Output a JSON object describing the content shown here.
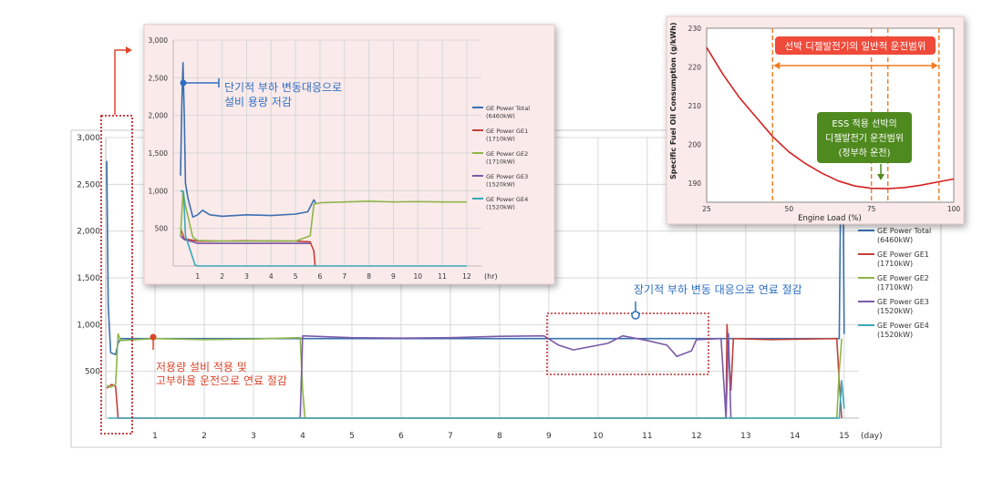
{
  "chart_data": [
    {
      "type": "line",
      "title": "",
      "xlabel": "",
      "ylabel": "",
      "x_unit": "(day)",
      "xticks": [
        1,
        2,
        3,
        4,
        5,
        6,
        7,
        8,
        9,
        10,
        11,
        12,
        13,
        14,
        15
      ],
      "xticklabels": [
        "1",
        "2",
        "3",
        "4",
        "5",
        "6",
        "7",
        "8",
        "9",
        "10",
        "11",
        "12",
        "13",
        "14",
        "15"
      ],
      "xlim": [
        0,
        15.3
      ],
      "yticks": [
        500,
        1000,
        1500,
        2000,
        2500,
        3000
      ],
      "yticklabels": [
        "500",
        "1,000",
        "1,500",
        "2,000",
        "2,500",
        "3,000"
      ],
      "ylim": [
        0,
        3000
      ],
      "grid": true,
      "legend": "right",
      "series": [
        {
          "name": "GE Power Total (6460kW)",
          "legend_lines": [
            "GE Power Total",
            "(6460kW)"
          ],
          "color": "#3a6fb0",
          "points": [
            [
              0.02,
              2750
            ],
            [
              0.05,
              1200
            ],
            [
              0.1,
              700
            ],
            [
              0.2,
              680
            ],
            [
              0.25,
              800
            ],
            [
              0.3,
              850
            ],
            [
              14.9,
              850
            ],
            [
              14.93,
              2500
            ],
            [
              14.97,
              3000
            ],
            [
              15.0,
              900
            ]
          ]
        },
        {
          "name": "GE Power GE1 (1710kW)",
          "legend_lines": [
            "GE Power GE1",
            "(1710kW)"
          ],
          "color": "#c0403a",
          "points": [
            [
              0.02,
              320
            ],
            [
              0.12,
              360
            ],
            [
              0.2,
              340
            ],
            [
              0.25,
              0
            ],
            [
              12.6,
              0
            ],
            [
              12.62,
              1000
            ],
            [
              12.7,
              300
            ],
            [
              12.75,
              850
            ],
            [
              13.5,
              840
            ],
            [
              14.85,
              850
            ],
            [
              14.9,
              400
            ],
            [
              14.95,
              0
            ]
          ]
        },
        {
          "name": "GE Power GE2 (1710kW)",
          "legend_lines": [
            "GE Power GE2",
            "(1710kW)"
          ],
          "color": "#8db64a",
          "points": [
            [
              0.02,
              350
            ],
            [
              0.1,
              330
            ],
            [
              0.2,
              360
            ],
            [
              0.25,
              900
            ],
            [
              0.3,
              830
            ],
            [
              1,
              850
            ],
            [
              2,
              840
            ],
            [
              3,
              845
            ],
            [
              3.95,
              860
            ],
            [
              4.0,
              300
            ],
            [
              4.05,
              0
            ],
            [
              14.85,
              0
            ],
            [
              14.9,
              500
            ],
            [
              14.95,
              850
            ]
          ]
        },
        {
          "name": "GE Power GE3 (1520kW)",
          "legend_lines": [
            "GE Power GE3",
            "(1520kW)"
          ],
          "color": "#7a5aa8",
          "points": [
            [
              3.95,
              0
            ],
            [
              4.0,
              880
            ],
            [
              5,
              860
            ],
            [
              6,
              855
            ],
            [
              7,
              860
            ],
            [
              8,
              875
            ],
            [
              8.9,
              880
            ],
            [
              9.2,
              780
            ],
            [
              9.5,
              730
            ],
            [
              10.2,
              800
            ],
            [
              10.5,
              880
            ],
            [
              11,
              830
            ],
            [
              11.4,
              780
            ],
            [
              11.6,
              660
            ],
            [
              11.9,
              720
            ],
            [
              12.0,
              840
            ],
            [
              12.5,
              850
            ],
            [
              12.6,
              0
            ],
            [
              12.65,
              900
            ],
            [
              12.7,
              0
            ]
          ]
        },
        {
          "name": "GE Power GE4 (1520kW)",
          "legend_lines": [
            "GE Power GE4",
            "(1520kW)"
          ],
          "color": "#3aa8b8",
          "points": [
            [
              0.05,
              0
            ],
            [
              14.9,
              0
            ],
            [
              14.95,
              400
            ],
            [
              15.0,
              100
            ]
          ]
        }
      ],
      "annotations": [
        {
          "text": "저용량 설비 적용 및",
          "color": "#d9472b"
        },
        {
          "text": "고부하율 운전으로 연료 절감",
          "color": "#d9472b"
        },
        {
          "text": "장기적 부하 변동 대응으로 연료 절감",
          "color": "#2e6fc4"
        }
      ]
    },
    {
      "type": "line",
      "title": "",
      "xlabel": "",
      "ylabel": "",
      "x_unit": "(hr)",
      "xticks": [
        1,
        2,
        3,
        4,
        5,
        6,
        7,
        8,
        9,
        10,
        11,
        12
      ],
      "xticklabels": [
        "1",
        "2",
        "3",
        "4",
        "5",
        "6",
        "7",
        "8",
        "9",
        "10",
        "11",
        "12"
      ],
      "xlim": [
        0,
        12.6
      ],
      "yticks": [
        500,
        1000,
        1500,
        2000,
        2500,
        3000
      ],
      "yticklabels": [
        "500",
        "1,000",
        "1,500",
        "2,000",
        "2,500",
        "3,000"
      ],
      "ylim": [
        0,
        3000
      ],
      "grid": true,
      "legend": "right",
      "series": [
        {
          "name": "GE Power Total (6460kW)",
          "legend_lines": [
            "GE Power Total",
            "(6460kW)"
          ],
          "color": "#3a6fb0",
          "points": [
            [
              0.3,
              1200
            ],
            [
              0.35,
              2150
            ],
            [
              0.4,
              2700
            ],
            [
              0.45,
              2000
            ],
            [
              0.5,
              1100
            ],
            [
              0.6,
              900
            ],
            [
              0.8,
              650
            ],
            [
              1.0,
              680
            ],
            [
              1.2,
              740
            ],
            [
              1.5,
              680
            ],
            [
              2,
              660
            ],
            [
              3,
              680
            ],
            [
              4,
              670
            ],
            [
              5,
              690
            ],
            [
              5.5,
              720
            ],
            [
              5.75,
              880
            ],
            [
              5.85,
              820
            ]
          ]
        },
        {
          "name": "GE Power GE1 (1710kW)",
          "legend_lines": [
            "GE Power GE1",
            "(1710kW)"
          ],
          "color": "#c0403a",
          "points": [
            [
              0.3,
              500
            ],
            [
              0.45,
              360
            ],
            [
              1,
              330
            ],
            [
              2,
              330
            ],
            [
              3,
              335
            ],
            [
              4,
              330
            ],
            [
              5,
              330
            ],
            [
              5.6,
              320
            ],
            [
              5.75,
              200
            ],
            [
              5.8,
              0
            ]
          ]
        },
        {
          "name": "GE Power GE2 (1710kW)",
          "legend_lines": [
            "GE Power GE2",
            "(1710kW)"
          ],
          "color": "#8db64a",
          "points": [
            [
              0.3,
              400
            ],
            [
              0.4,
              1000
            ],
            [
              0.5,
              800
            ],
            [
              0.8,
              380
            ],
            [
              1,
              340
            ],
            [
              2,
              330
            ],
            [
              3,
              330
            ],
            [
              4,
              335
            ],
            [
              5,
              330
            ],
            [
              5.6,
              400
            ],
            [
              5.75,
              820
            ],
            [
              6,
              840
            ],
            [
              7,
              850
            ],
            [
              8,
              860
            ],
            [
              9,
              850
            ],
            [
              10,
              855
            ],
            [
              11,
              850
            ],
            [
              12,
              850
            ]
          ]
        },
        {
          "name": "GE Power GE3 (1520kW)",
          "legend_lines": [
            "GE Power GE3",
            "(1520kW)"
          ],
          "color": "#7a5aa8",
          "points": [
            [
              0.3,
              400
            ],
            [
              0.45,
              350
            ],
            [
              0.8,
              320
            ],
            [
              1,
              300
            ],
            [
              2,
              300
            ],
            [
              3,
              300
            ],
            [
              4,
              300
            ],
            [
              5,
              300
            ],
            [
              5.6,
              300
            ]
          ]
        },
        {
          "name": "GE Power GE4 (1520kW)",
          "legend_lines": [
            "GE Power GE4",
            "(1520kW)"
          ],
          "color": "#3aa8b8",
          "points": [
            [
              0.3,
              1000
            ],
            [
              0.42,
              980
            ],
            [
              0.5,
              400
            ],
            [
              0.9,
              10
            ],
            [
              1,
              0
            ],
            [
              12,
              0
            ]
          ]
        }
      ],
      "annotations": [
        {
          "text": "단기적 부하 변동대응으로",
          "color": "#2e6fc4"
        },
        {
          "text": "설비 용량 저감",
          "color": "#2e6fc4"
        }
      ]
    },
    {
      "type": "line",
      "title": "",
      "xlabel": "Engine Load (%)",
      "ylabel": "Specific Fuel Oil Consumption (g/kWh)",
      "xticks": [
        25,
        50,
        75,
        100
      ],
      "xticklabels": [
        "25",
        "50",
        "75",
        "100"
      ],
      "xlim": [
        25,
        100
      ],
      "yticks": [
        190,
        200,
        210,
        220,
        230
      ],
      "yticklabels": [
        "190",
        "200",
        "210",
        "220",
        "230"
      ],
      "ylim": [
        185,
        230
      ],
      "grid": false,
      "series": [
        {
          "name": "",
          "color": "#d62020",
          "points": [
            [
              25,
              225
            ],
            [
              30,
              218
            ],
            [
              35,
              212
            ],
            [
              40,
              207
            ],
            [
              45,
              202
            ],
            [
              50,
              198
            ],
            [
              55,
              195
            ],
            [
              60,
              192.5
            ],
            [
              65,
              190.5
            ],
            [
              70,
              189.2
            ],
            [
              75,
              188.6
            ],
            [
              80,
              188.5
            ],
            [
              85,
              188.8
            ],
            [
              90,
              189.4
            ],
            [
              95,
              190.2
            ],
            [
              100,
              191
            ]
          ]
        }
      ],
      "ranges": [
        {
          "name": "general",
          "x": [
            45,
            95.5
          ]
        },
        {
          "name": "ess",
          "x": [
            75,
            80
          ]
        }
      ],
      "annotations": [
        {
          "text": "선박 디젤발전기의 일반적 운전범위",
          "bg": "#f04a3a",
          "color": "#ffffff"
        },
        {
          "text_lines": [
            "ESS 적용 선박의",
            "디젤발전기 운전범위",
            "(정부하 운전)"
          ],
          "bg": "#4f8a1e",
          "color": "#ffffff"
        }
      ]
    }
  ],
  "labels": {
    "main_annot_1": "저용량 설비 적용 및",
    "main_annot_2": "고부하율 운전으로 연료 절감",
    "main_annot_3": "장기적 부하 변동 대응으로 연료 절감",
    "main_unit": "(day)",
    "inset_annot_1": "단기적 부하 변동대응으로",
    "inset_annot_2": "설비 용량 저감",
    "inset_unit": "(hr)",
    "sfoc_ylabel": "Specific Fuel Oil Consumption (g/kWh)",
    "sfoc_xlabel": "Engine Load (%)",
    "sfoc_annot_general": "선박 디젤발전기의 일반적 운전범위",
    "sfoc_annot_ess_1": "ESS 적용 선박의",
    "sfoc_annot_ess_2": "디젤발전기 운전범위",
    "sfoc_annot_ess_3": "(정부하 운전)"
  },
  "colors": {
    "accent_red": "#d9472b",
    "accent_blue": "#2e6fc4",
    "grid": "#d8d8d8",
    "inset_bg": "#fbeaea"
  }
}
